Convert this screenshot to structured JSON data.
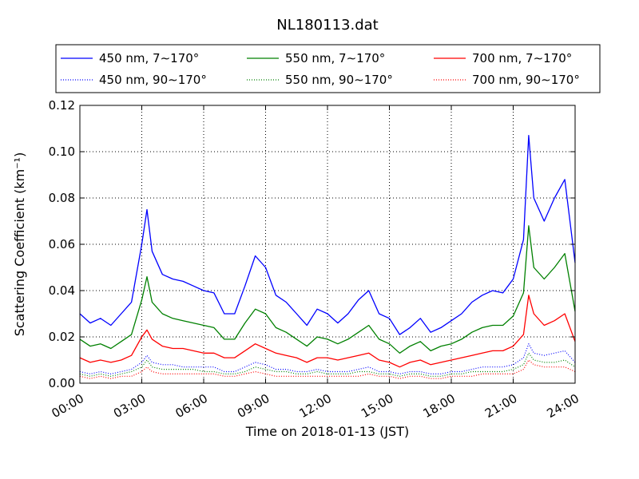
{
  "chart_data": {
    "type": "line",
    "title": "NL180113.dat",
    "xlabel": "Time on 2018-01-13 (JST)",
    "ylabel": "Scattering Coefficient (km⁻¹)",
    "xlim": [
      0,
      24
    ],
    "ylim": [
      0,
      0.12
    ],
    "xticks": [
      0,
      3,
      6,
      9,
      12,
      15,
      18,
      21,
      24
    ],
    "xtick_labels": [
      "00:00",
      "03:00",
      "06:00",
      "09:00",
      "12:00",
      "15:00",
      "18:00",
      "21:00",
      "24:00"
    ],
    "yticks": [
      0,
      0.02,
      0.04,
      0.06,
      0.08,
      0.1,
      0.12
    ],
    "ytick_labels": [
      "0.00",
      "0.02",
      "0.04",
      "0.06",
      "0.08",
      "0.10",
      "0.12"
    ],
    "grid": true,
    "legend_position": "top (above plot), 3 columns",
    "x": [
      0,
      0.5,
      1,
      1.5,
      2,
      2.5,
      3,
      3.25,
      3.5,
      4,
      4.5,
      5,
      5.5,
      6,
      6.5,
      7,
      7.5,
      8,
      8.5,
      9,
      9.5,
      10,
      10.5,
      11,
      11.5,
      12,
      12.5,
      13,
      13.5,
      14,
      14.5,
      15,
      15.5,
      16,
      16.5,
      17,
      17.5,
      18,
      18.5,
      19,
      19.5,
      20,
      20.5,
      21,
      21.5,
      21.75,
      22,
      22.5,
      23,
      23.5,
      24
    ],
    "series": [
      {
        "name": "450 nm, 7∼170°",
        "color": "#0000ff",
        "style": "solid",
        "values": [
          0.03,
          0.026,
          0.028,
          0.025,
          0.03,
          0.035,
          0.06,
          0.075,
          0.057,
          0.047,
          0.045,
          0.044,
          0.042,
          0.04,
          0.039,
          0.03,
          0.03,
          0.042,
          0.055,
          0.05,
          0.038,
          0.035,
          0.03,
          0.025,
          0.032,
          0.03,
          0.026,
          0.03,
          0.036,
          0.04,
          0.03,
          0.028,
          0.021,
          0.024,
          0.028,
          0.022,
          0.024,
          0.027,
          0.03,
          0.035,
          0.038,
          0.04,
          0.039,
          0.045,
          0.062,
          0.107,
          0.08,
          0.07,
          0.08,
          0.088,
          0.052
        ]
      },
      {
        "name": "550 nm, 7∼170°",
        "color": "#008000",
        "style": "solid",
        "values": [
          0.019,
          0.016,
          0.017,
          0.015,
          0.018,
          0.021,
          0.036,
          0.046,
          0.035,
          0.03,
          0.028,
          0.027,
          0.026,
          0.025,
          0.024,
          0.019,
          0.019,
          0.026,
          0.032,
          0.03,
          0.024,
          0.022,
          0.019,
          0.016,
          0.02,
          0.019,
          0.017,
          0.019,
          0.022,
          0.025,
          0.019,
          0.017,
          0.013,
          0.016,
          0.018,
          0.014,
          0.016,
          0.017,
          0.019,
          0.022,
          0.024,
          0.025,
          0.025,
          0.029,
          0.039,
          0.068,
          0.05,
          0.045,
          0.05,
          0.056,
          0.031
        ]
      },
      {
        "name": "700 nm, 7∼170°",
        "color": "#ff0000",
        "style": "solid",
        "values": [
          0.011,
          0.009,
          0.01,
          0.009,
          0.01,
          0.012,
          0.02,
          0.023,
          0.019,
          0.016,
          0.015,
          0.015,
          0.014,
          0.013,
          0.013,
          0.011,
          0.011,
          0.014,
          0.017,
          0.015,
          0.013,
          0.012,
          0.011,
          0.009,
          0.011,
          0.011,
          0.01,
          0.011,
          0.012,
          0.013,
          0.01,
          0.009,
          0.007,
          0.009,
          0.01,
          0.008,
          0.009,
          0.01,
          0.011,
          0.012,
          0.013,
          0.014,
          0.014,
          0.016,
          0.021,
          0.038,
          0.03,
          0.025,
          0.027,
          0.03,
          0.018
        ]
      },
      {
        "name": "450 nm, 90∼170°",
        "color": "#0000ff",
        "style": "dotted",
        "values": [
          0.005,
          0.004,
          0.005,
          0.004,
          0.005,
          0.006,
          0.009,
          0.012,
          0.009,
          0.008,
          0.008,
          0.007,
          0.007,
          0.007,
          0.007,
          0.005,
          0.005,
          0.007,
          0.009,
          0.008,
          0.006,
          0.006,
          0.005,
          0.005,
          0.006,
          0.005,
          0.005,
          0.005,
          0.006,
          0.007,
          0.005,
          0.005,
          0.004,
          0.005,
          0.005,
          0.004,
          0.004,
          0.005,
          0.005,
          0.006,
          0.007,
          0.007,
          0.007,
          0.008,
          0.011,
          0.017,
          0.013,
          0.012,
          0.013,
          0.014,
          0.009
        ]
      },
      {
        "name": "550 nm, 90∼170°",
        "color": "#008000",
        "style": "dotted",
        "values": [
          0.004,
          0.003,
          0.004,
          0.003,
          0.004,
          0.005,
          0.007,
          0.01,
          0.007,
          0.006,
          0.006,
          0.006,
          0.006,
          0.005,
          0.005,
          0.004,
          0.004,
          0.005,
          0.007,
          0.006,
          0.005,
          0.005,
          0.004,
          0.004,
          0.005,
          0.004,
          0.004,
          0.004,
          0.005,
          0.005,
          0.004,
          0.004,
          0.003,
          0.004,
          0.004,
          0.003,
          0.003,
          0.004,
          0.004,
          0.005,
          0.005,
          0.005,
          0.005,
          0.006,
          0.008,
          0.013,
          0.01,
          0.009,
          0.009,
          0.01,
          0.007
        ]
      },
      {
        "name": "700 nm, 90∼170°",
        "color": "#ff0000",
        "style": "dotted",
        "values": [
          0.003,
          0.002,
          0.003,
          0.002,
          0.003,
          0.003,
          0.005,
          0.007,
          0.005,
          0.004,
          0.004,
          0.004,
          0.004,
          0.004,
          0.004,
          0.003,
          0.003,
          0.004,
          0.005,
          0.004,
          0.003,
          0.003,
          0.003,
          0.003,
          0.003,
          0.003,
          0.003,
          0.003,
          0.003,
          0.004,
          0.003,
          0.003,
          0.002,
          0.003,
          0.003,
          0.002,
          0.002,
          0.003,
          0.003,
          0.003,
          0.004,
          0.004,
          0.004,
          0.004,
          0.006,
          0.01,
          0.008,
          0.007,
          0.007,
          0.007,
          0.005
        ]
      }
    ]
  }
}
